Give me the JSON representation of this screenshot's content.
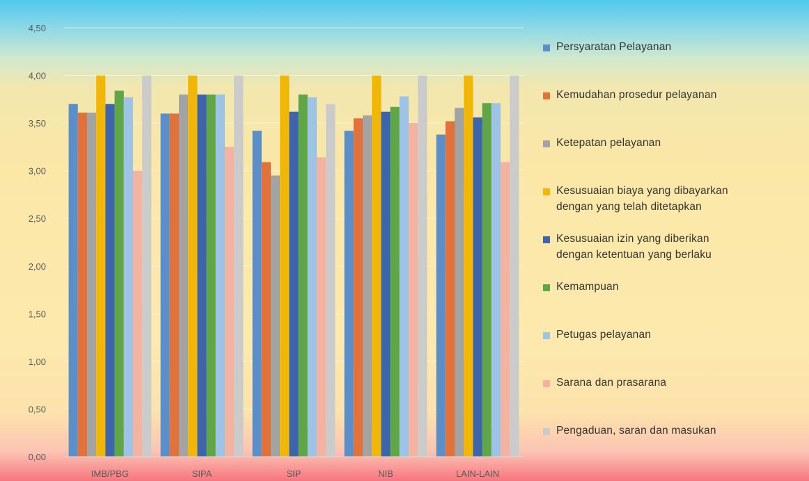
{
  "chart_data": {
    "type": "bar",
    "title": "",
    "xlabel": "",
    "ylabel": "",
    "ylim": [
      0,
      4.5
    ],
    "yticks": [
      "0,00",
      "0,50",
      "1,00",
      "1,50",
      "2,00",
      "2,50",
      "3,00",
      "3,50",
      "4,00",
      "4,50"
    ],
    "grid": true,
    "legend_position": "right",
    "categories": [
      "IMB/PBG",
      "SIPA",
      "SIP",
      "NIB",
      "LAIN-LAIN"
    ],
    "series": [
      {
        "name": "Persyaratan Pelayanan",
        "color": "#5b8fc9",
        "values": [
          3.7,
          3.6,
          3.42,
          3.42,
          3.38
        ]
      },
      {
        "name": "Kemudahan prosedur pelayanan",
        "color": "#e2713a",
        "values": [
          3.61,
          3.6,
          3.09,
          3.55,
          3.52
        ]
      },
      {
        "name": "Ketepatan pelayanan",
        "color": "#a3a3a3",
        "values": [
          3.61,
          3.8,
          2.95,
          3.58,
          3.66
        ]
      },
      {
        "name": "Kesusuaian biaya yang dibayarkan\ndengan yang telah ditetapkan",
        "color": "#f2b705",
        "values": [
          4.0,
          4.0,
          4.0,
          4.0,
          4.0
        ]
      },
      {
        "name": "Kesusuaian izin yang diberikan\ndengan ketentuan yang berlaku",
        "color": "#3d64ad",
        "values": [
          3.7,
          3.8,
          3.62,
          3.62,
          3.56
        ]
      },
      {
        "name": "Kemampuan",
        "color": "#5ea646",
        "values": [
          3.84,
          3.8,
          3.8,
          3.67,
          3.71
        ]
      },
      {
        "name": "Petugas pelayanan",
        "color": "#9dc3e6",
        "values": [
          3.77,
          3.8,
          3.77,
          3.78,
          3.71
        ]
      },
      {
        "name": "Sarana dan prasarana",
        "color": "#f4b2a0",
        "values": [
          3.0,
          3.25,
          3.14,
          3.5,
          3.09
        ]
      },
      {
        "name": "Pengaduan, saran dan masukan",
        "color": "#cbcbcb",
        "values": [
          4.0,
          4.0,
          3.7,
          4.0,
          4.0
        ]
      }
    ]
  }
}
